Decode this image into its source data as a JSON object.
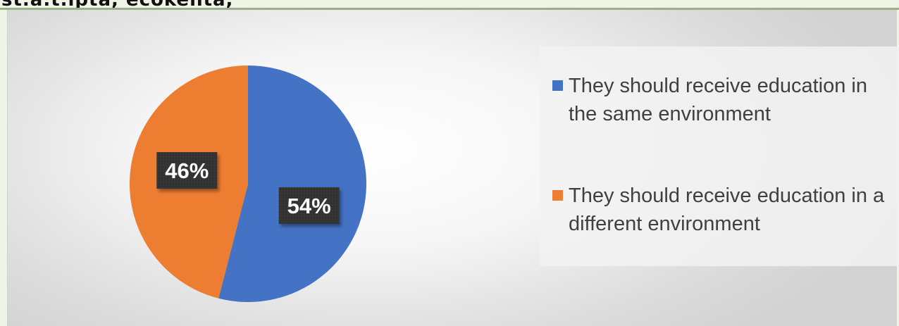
{
  "header": {
    "title_fragment": "st.a.t.ipta, ecokenta,"
  },
  "chart_data": {
    "type": "pie",
    "title": "",
    "slices": [
      {
        "label": "They should receive education in the same environment",
        "value": 54,
        "display": "54%",
        "color": "#4472c4"
      },
      {
        "label": "They should receive education in a different environment",
        "value": 46,
        "display": "46%",
        "color": "#ed7d31"
      }
    ],
    "legend_position": "right"
  }
}
